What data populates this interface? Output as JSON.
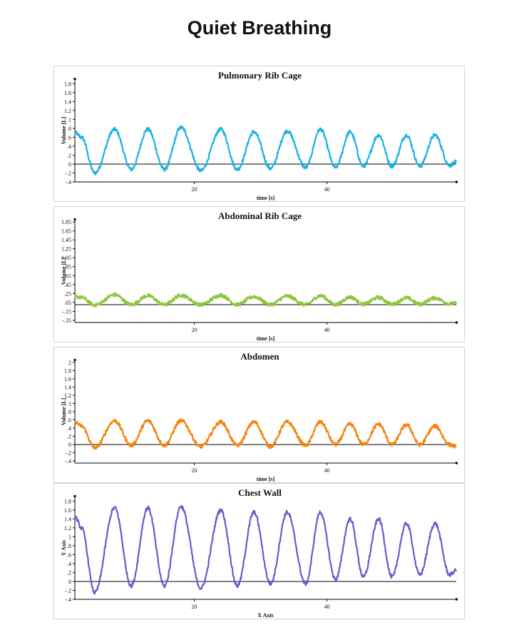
{
  "page": {
    "title": "Quiet Breathing"
  },
  "chart_data": [
    {
      "type": "line",
      "title": "Pulmonary Rib Cage",
      "xlabel": "time [s]",
      "ylabel": "Volume [L]",
      "color": "#1ab2e6",
      "xlim": [
        2,
        59.5
      ],
      "ylim": [
        -0.4,
        1.9
      ],
      "x_ticks": [
        "20",
        "40"
      ],
      "x_tick_values": [
        20,
        40
      ],
      "y_ticks": [
        "1.8",
        "1.6",
        "1.4",
        "1.2",
        "1",
        ".8",
        ".6",
        ".4",
        ".2",
        "0",
        "-.2",
        "-.4"
      ],
      "y_tick_values": [
        1.8,
        1.6,
        1.4,
        1.2,
        1.0,
        0.8,
        0.6,
        0.4,
        0.2,
        0.0,
        -0.2,
        -0.4
      ],
      "grid": false,
      "series": [
        {
          "x": [
            2,
            3,
            5,
            8,
            10.5,
            13,
            15.5,
            18,
            21,
            24,
            26.5,
            29,
            31.5,
            34,
            36.8,
            39,
            41.3,
            43.5,
            45.5,
            47.8,
            49.8,
            52,
            54,
            56.3,
            58.5,
            59.5
          ],
          "values": [
            0.7,
            0.6,
            -0.2,
            0.78,
            -0.12,
            0.78,
            -0.12,
            0.82,
            -0.15,
            0.78,
            -0.12,
            0.72,
            -0.1,
            0.74,
            -0.08,
            0.78,
            -0.08,
            0.72,
            -0.05,
            0.65,
            -0.05,
            0.65,
            -0.05,
            0.65,
            -0.03,
            0.05
          ]
        }
      ]
    },
    {
      "type": "line",
      "title": "Abdominal Rib Cage",
      "xlabel": "time [s]",
      "ylabel": "Volume [L]",
      "color": "#8cc63f",
      "xlim": [
        2,
        59.5
      ],
      "ylim": [
        -0.4,
        1.9
      ],
      "x_ticks": [
        "20",
        "40"
      ],
      "x_tick_values": [
        20,
        40
      ],
      "y_ticks": [
        "1.85",
        "1.65",
        "1.45",
        "1.25",
        "1.05",
        ".85",
        ".65",
        ".45",
        ".25",
        ".05",
        "-.15",
        "-.35"
      ],
      "y_tick_values": [
        1.85,
        1.65,
        1.45,
        1.25,
        1.05,
        0.85,
        0.65,
        0.45,
        0.25,
        0.05,
        -0.15,
        -0.35
      ],
      "grid": false,
      "series": [
        {
          "x": [
            2,
            3,
            5,
            8,
            10.5,
            13,
            15.5,
            18,
            21,
            24,
            26.5,
            29,
            31.5,
            34,
            36.8,
            39,
            41.3,
            43.5,
            45.5,
            47.8,
            49.8,
            52,
            54,
            56.3,
            58.5,
            59.5
          ],
          "values": [
            0.18,
            0.16,
            -0.01,
            0.22,
            0.0,
            0.2,
            0.0,
            0.21,
            0.0,
            0.21,
            0.0,
            0.18,
            0.0,
            0.19,
            0.0,
            0.2,
            0.0,
            0.17,
            0.01,
            0.16,
            0.01,
            0.15,
            0.01,
            0.15,
            0.02,
            0.03
          ]
        }
      ]
    },
    {
      "type": "line",
      "title": "Abdomen",
      "xlabel": "time [s]",
      "ylabel": "Volume [L]",
      "color": "#f5820f",
      "xlim": [
        2,
        59.5
      ],
      "ylim": [
        -0.45,
        2.05
      ],
      "x_ticks": [
        "20",
        "40"
      ],
      "x_tick_values": [
        20,
        40
      ],
      "y_ticks": [
        "2",
        "1.8",
        "1.6",
        "1.4",
        "1.2",
        "1",
        ".8",
        ".6",
        ".4",
        ".2",
        "0",
        "-.2",
        "-.4"
      ],
      "y_tick_values": [
        2.0,
        1.8,
        1.6,
        1.4,
        1.2,
        1.0,
        0.8,
        0.6,
        0.4,
        0.2,
        0.0,
        -0.2,
        -0.4
      ],
      "grid": false,
      "series": [
        {
          "x": [
            2,
            3,
            5,
            8,
            10.5,
            13,
            15.5,
            18,
            21,
            24,
            26.5,
            29,
            31.5,
            34,
            36.8,
            39,
            41.3,
            43.5,
            45.5,
            47.8,
            49.8,
            52,
            54,
            56.3,
            58.5,
            59.5
          ],
          "values": [
            0.55,
            0.45,
            -0.08,
            0.58,
            -0.02,
            0.58,
            -0.02,
            0.58,
            -0.05,
            0.55,
            -0.02,
            0.55,
            -0.05,
            0.55,
            -0.02,
            0.55,
            0.0,
            0.5,
            0.0,
            0.5,
            0.0,
            0.48,
            0.0,
            0.45,
            0.0,
            -0.05
          ]
        }
      ]
    },
    {
      "type": "line",
      "title": "Chest Wall",
      "xlabel": "X Axis",
      "ylabel": "Y Axis",
      "color": "#6a5acd",
      "xlim": [
        2,
        59.5
      ],
      "ylim": [
        -0.4,
        1.9
      ],
      "x_ticks": [
        "20",
        "40"
      ],
      "x_tick_values": [
        20,
        40
      ],
      "y_ticks": [
        "1.8",
        "1.6",
        "1.4",
        "1.2",
        "1",
        ".8",
        ".6",
        ".4",
        ".2",
        "0",
        "-.2",
        "-.4"
      ],
      "y_tick_values": [
        1.8,
        1.6,
        1.4,
        1.2,
        1.0,
        0.8,
        0.6,
        0.4,
        0.2,
        0.0,
        -0.2,
        -0.4
      ],
      "grid": false,
      "series": [
        {
          "x": [
            2,
            3,
            5,
            8,
            10.5,
            13,
            15.5,
            18,
            21,
            24,
            26.5,
            29,
            31.5,
            34,
            36.8,
            39,
            41.3,
            43.5,
            45.5,
            47.8,
            49.8,
            52,
            54,
            56.3,
            58.5,
            59.5
          ],
          "values": [
            1.45,
            1.2,
            -0.25,
            1.65,
            -0.1,
            1.65,
            -0.1,
            1.68,
            -0.15,
            1.6,
            -0.1,
            1.55,
            -0.05,
            1.55,
            -0.05,
            1.55,
            0.05,
            1.4,
            0.1,
            1.4,
            0.1,
            1.3,
            0.15,
            1.3,
            0.15,
            0.25
          ]
        }
      ]
    }
  ]
}
